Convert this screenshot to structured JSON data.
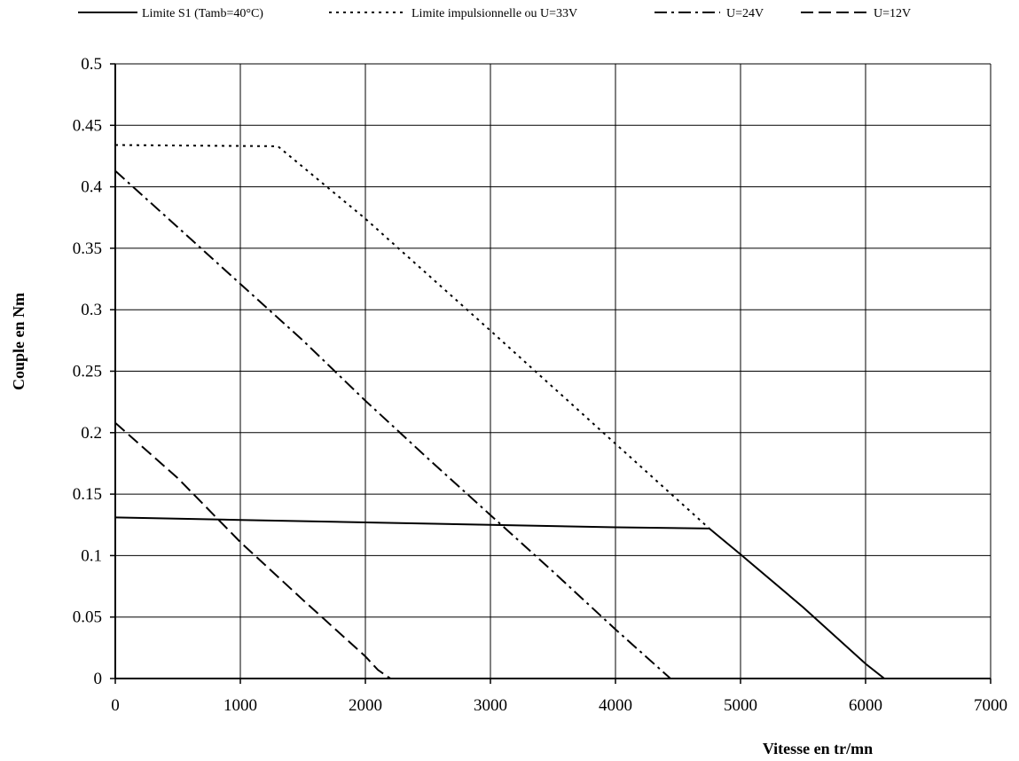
{
  "chart_data": {
    "type": "line",
    "xlabel": "Vitesse  en  tr/mn",
    "ylabel": "Couple  en  Nm",
    "xlim": [
      0,
      7000
    ],
    "ylim": [
      0,
      0.5
    ],
    "x_ticks": [
      0,
      1000,
      2000,
      3000,
      4000,
      5000,
      6000,
      7000
    ],
    "y_ticks": [
      0,
      0.05,
      0.1,
      0.15,
      0.2,
      0.25,
      0.3,
      0.35,
      0.4,
      0.45,
      0.5
    ],
    "x_tick_labels": [
      "0",
      "1000",
      "2000",
      "3000",
      "4000",
      "5000",
      "6000",
      "7000"
    ],
    "y_tick_labels": [
      "0",
      "0.05",
      "0.1",
      "0.15",
      "0.2",
      "0.25",
      "0.3",
      "0.35",
      "0.4",
      "0.45",
      "0.5"
    ],
    "grid": true,
    "legend_position": "top",
    "series": [
      {
        "name": "Limite S1 (Tamb=40°C)",
        "style": "solid",
        "points": [
          [
            0,
            0.131
          ],
          [
            1000,
            0.129
          ],
          [
            2000,
            0.127
          ],
          [
            3000,
            0.125
          ],
          [
            4000,
            0.123
          ],
          [
            4750,
            0.122
          ],
          [
            5000,
            0.101
          ],
          [
            5500,
            0.058
          ],
          [
            6000,
            0.012
          ],
          [
            6150,
            0.0
          ]
        ]
      },
      {
        "name": "Limite impulsionnelle ou U=33V",
        "style": "dotted",
        "points": [
          [
            0,
            0.434
          ],
          [
            1300,
            0.433
          ],
          [
            2000,
            0.374
          ],
          [
            3000,
            0.283
          ],
          [
            4000,
            0.191
          ],
          [
            4750,
            0.122
          ]
        ]
      },
      {
        "name": "U=24V",
        "style": "dashdot",
        "points": [
          [
            0,
            0.413
          ],
          [
            500,
            0.367
          ],
          [
            1000,
            0.321
          ],
          [
            1500,
            0.275
          ],
          [
            2000,
            0.226
          ],
          [
            2500,
            0.179
          ],
          [
            3000,
            0.133
          ],
          [
            3500,
            0.087
          ],
          [
            4000,
            0.04
          ],
          [
            4440,
            0.0
          ]
        ]
      },
      {
        "name": "U=12V",
        "style": "dashed",
        "points": [
          [
            0,
            0.208
          ],
          [
            500,
            0.163
          ],
          [
            1000,
            0.111
          ],
          [
            1500,
            0.064
          ],
          [
            2000,
            0.018
          ],
          [
            2100,
            0.007
          ],
          [
            2200,
            0.0
          ]
        ]
      }
    ]
  }
}
